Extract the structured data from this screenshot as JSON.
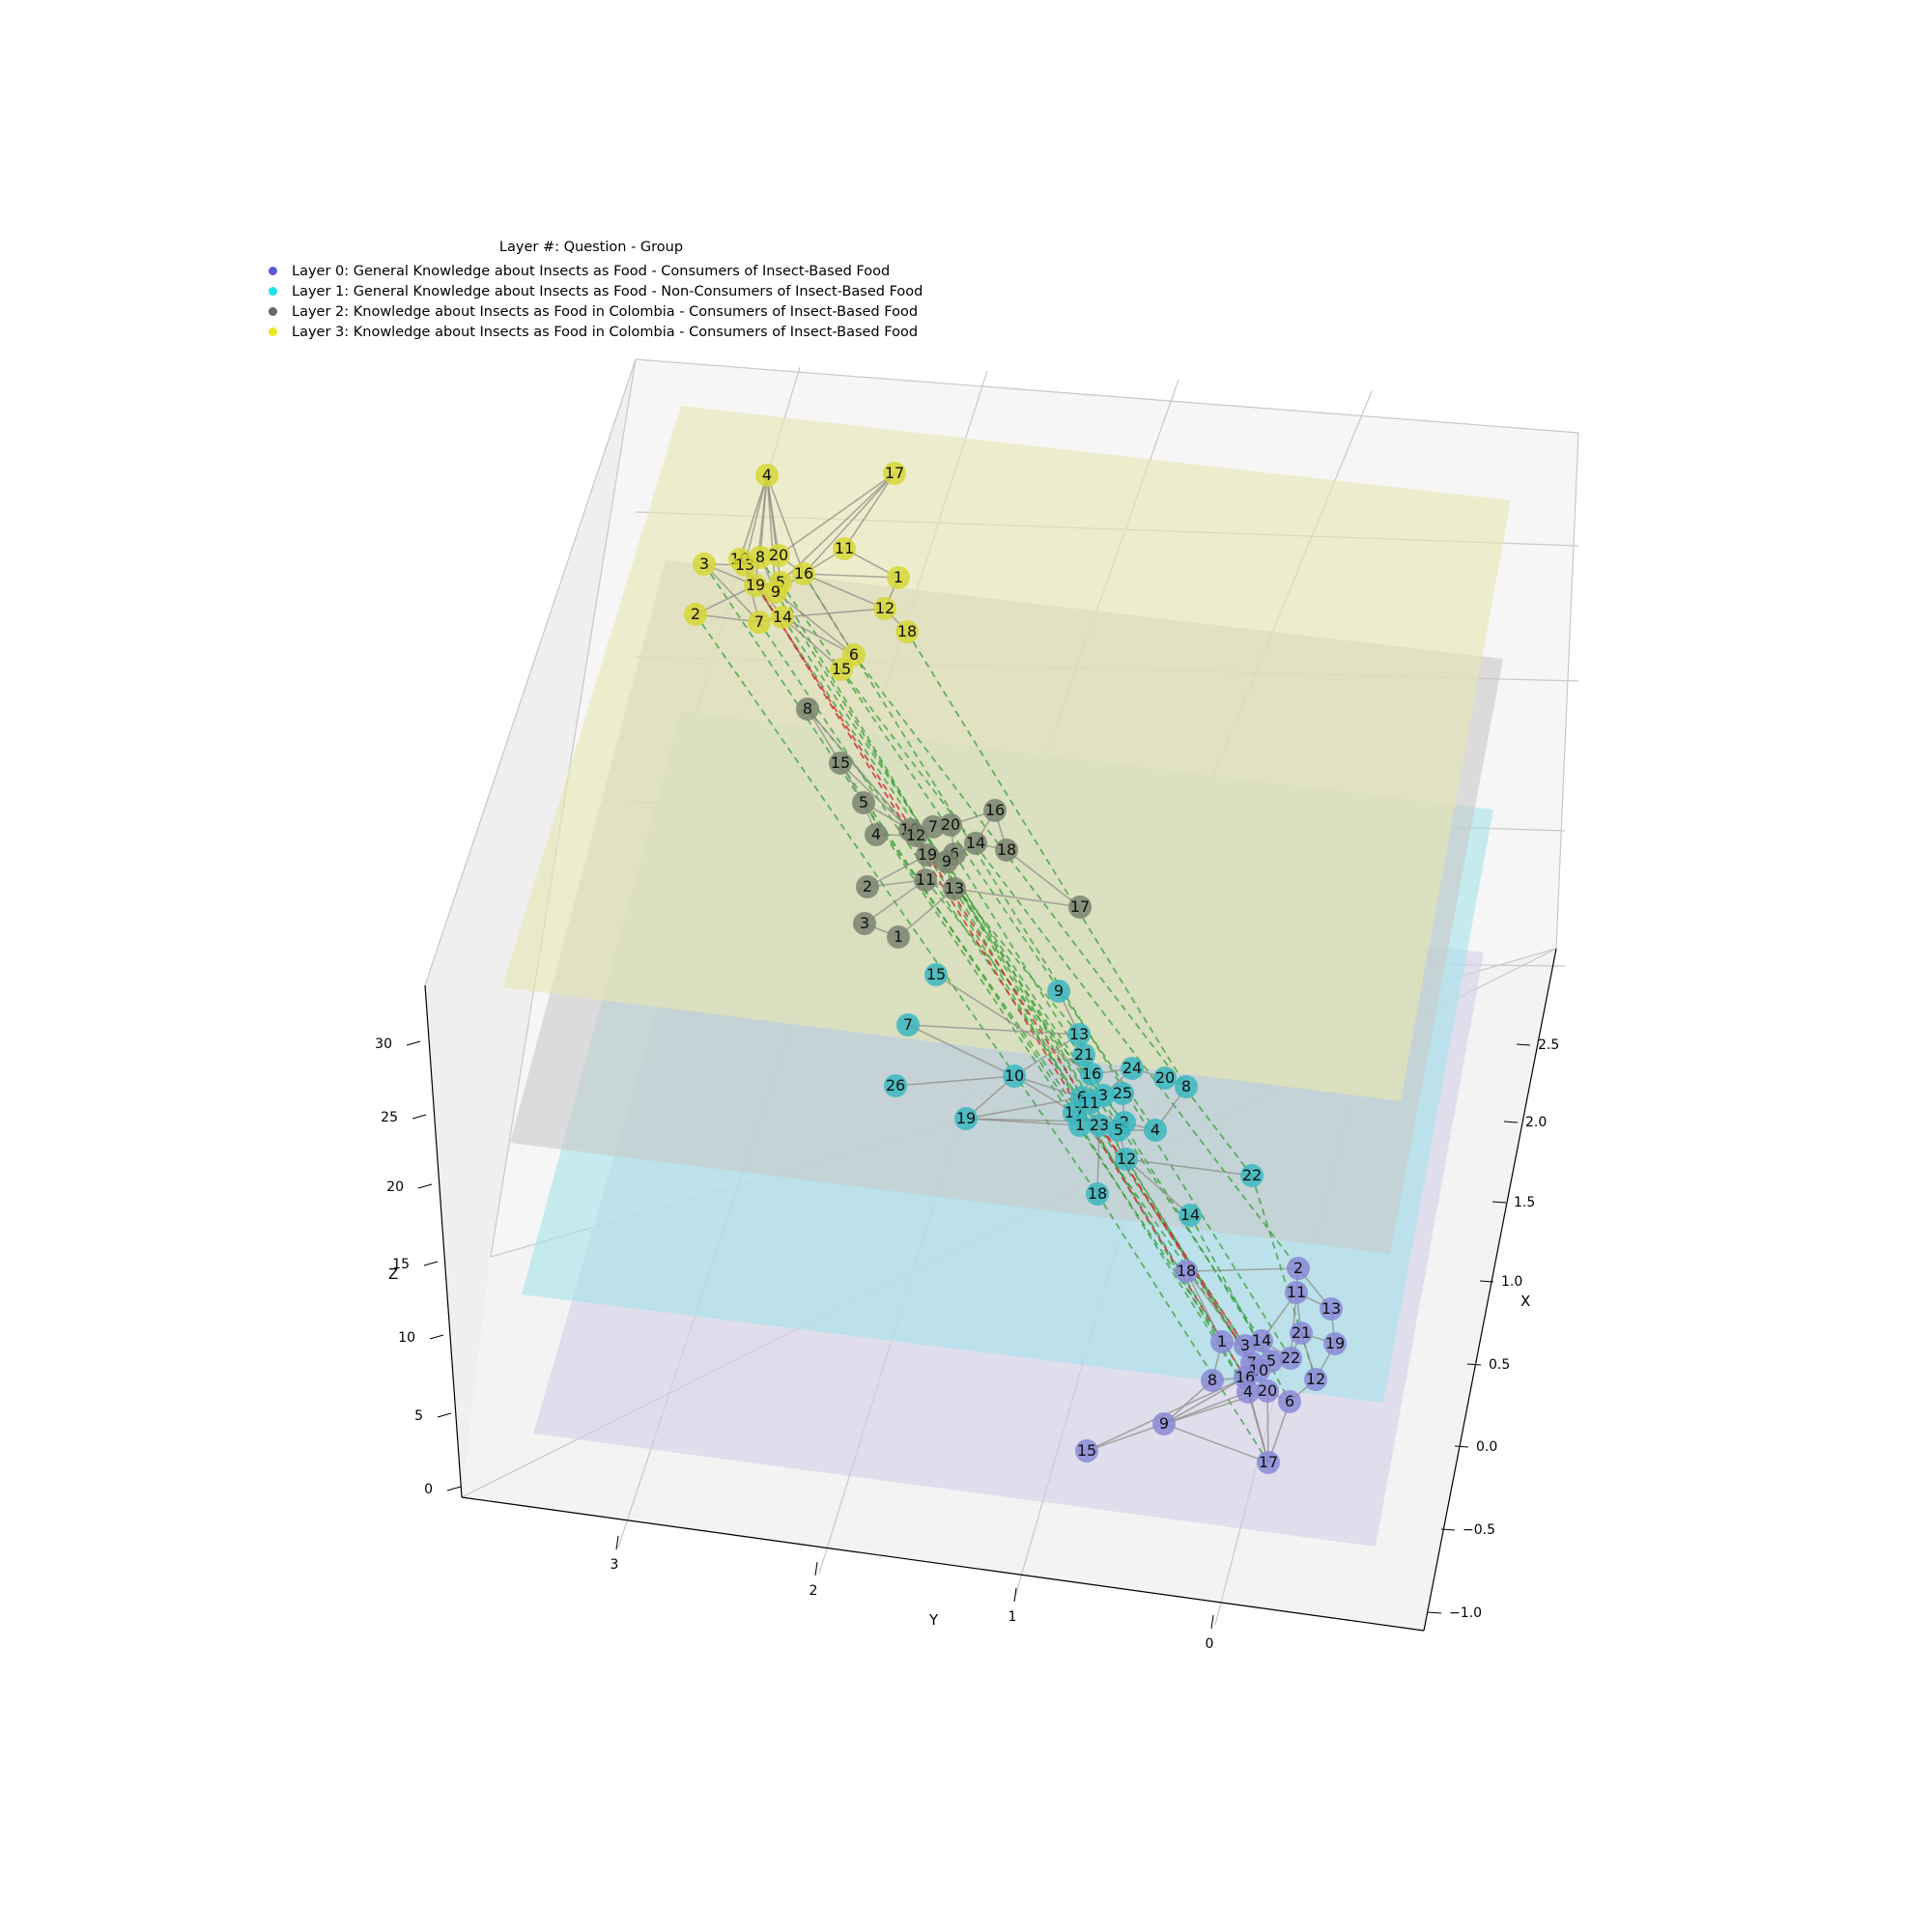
{
  "chart_data": {
    "type": "3d-multilayer-network",
    "axes": {
      "x": {
        "label": "X",
        "ticks": [
          "−1.0",
          "−0.5",
          "0.0",
          "0.5",
          "1.0",
          "1.5",
          "2.0",
          "2.5"
        ]
      },
      "y": {
        "label": "Y",
        "ticks": [
          "0",
          "1",
          "2",
          "3"
        ]
      },
      "z": {
        "label": "Z",
        "ticks": [
          "0",
          "5",
          "10",
          "15",
          "20",
          "25",
          "30"
        ]
      }
    },
    "legend": {
      "title": "Layer #: Question - Group",
      "placement": "upper-left",
      "entries": [
        {
          "label": "Layer 0: General Knowledge about Insects as Food - Consumers of Insect-Based Food",
          "color": "#5b5bd6"
        },
        {
          "label": "Layer 1: General Knowledge about Insects as Food - Non-Consumers of Insect-Based Food",
          "color": "#22e0e8"
        },
        {
          "label": "Layer 2: Knowledge about Insects as Food in Colombia - Consumers of Insect-Based Food",
          "color": "#666666"
        },
        {
          "label": "Layer 3: Knowledge about Insects as Food in Colombia - Consumers of Insect-Based Food",
          "color": "#e8e81e"
        }
      ]
    },
    "layers": [
      {
        "layer": 0,
        "plane_color": "#d3d0e8",
        "node_color": "#8a8ad6",
        "nodes": [
          "2",
          "11",
          "13",
          "18",
          "21",
          "19",
          "1",
          "3",
          "14",
          "22",
          "7",
          "5",
          "10",
          "12",
          "8",
          "16",
          "4",
          "20",
          "6",
          "9",
          "15",
          "17"
        ]
      },
      {
        "layer": 1,
        "plane_color": "#a7e3e8",
        "node_color": "#3ab7bf",
        "nodes": [
          "15",
          "9",
          "7",
          "13",
          "21",
          "16",
          "24",
          "20",
          "8",
          "10",
          "26",
          "6",
          "3",
          "25",
          "17",
          "11",
          "19",
          "1",
          "23",
          "2",
          "5",
          "4",
          "12",
          "22",
          "18",
          "14"
        ]
      },
      {
        "layer": 2,
        "plane_color": "#c9c9c9",
        "node_color": "#7a8470",
        "nodes": [
          "8",
          "15",
          "5",
          "10",
          "7",
          "20",
          "16",
          "12",
          "4",
          "19",
          "6",
          "9",
          "14",
          "18",
          "2",
          "11",
          "13",
          "17",
          "3",
          "1"
        ]
      },
      {
        "layer": 3,
        "plane_color": "#e6e6b3",
        "node_color": "#d6d636",
        "nodes": [
          "4",
          "17",
          "10",
          "13",
          "8",
          "20",
          "11",
          "3",
          "19",
          "5",
          "9",
          "16",
          "1",
          "2",
          "7",
          "14",
          "12",
          "18",
          "6",
          "15"
        ]
      }
    ],
    "interlayer_edges": {
      "style": "dashed",
      "colors": [
        "#2e9a2e",
        "#cc2a2a"
      ]
    }
  }
}
